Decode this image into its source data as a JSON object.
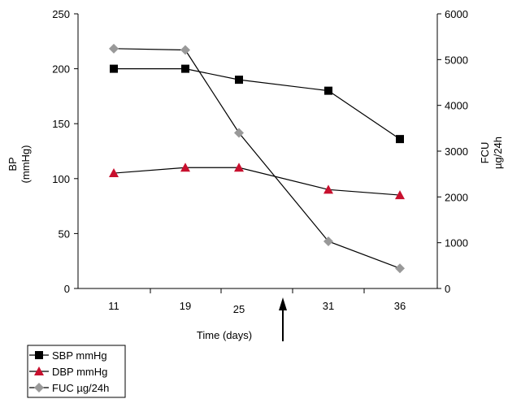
{
  "chart_data": {
    "type": "line",
    "x_label": "Time (days)",
    "x_tick_labels": [
      "11",
      "19",
      "25",
      "31",
      "36"
    ],
    "x": [
      11,
      19,
      25,
      31,
      36
    ],
    "y_left": {
      "label_line1": "BP",
      "label_line2": "(mmHg)",
      "range": [
        0,
        250
      ],
      "ticks": [
        0,
        50,
        100,
        150,
        200,
        250
      ]
    },
    "y_right": {
      "label_line1": "FCU",
      "label_line2": "µg/24h",
      "range": [
        0,
        6000
      ],
      "ticks": [
        0,
        1000,
        2000,
        3000,
        4000,
        5000,
        6000
      ]
    },
    "series": [
      {
        "name": "SBP mmHg",
        "axis": "left",
        "marker": "square",
        "color": "#000000",
        "values": [
          200,
          200,
          190,
          180,
          136
        ]
      },
      {
        "name": "DBP mmHg",
        "axis": "left",
        "marker": "triangle",
        "color": "#c8102e",
        "values": [
          105,
          110,
          110,
          90,
          85
        ]
      },
      {
        "name": "FUC µg/24h",
        "axis": "right",
        "marker": "diamond",
        "color": "#999999",
        "values": [
          5240,
          5210,
          3400,
          1030,
          440
        ]
      }
    ],
    "annotation": {
      "type": "arrow",
      "direction": "up",
      "between_x": [
        25,
        31
      ]
    },
    "legend_placement": "bottom-left",
    "grid": false
  }
}
